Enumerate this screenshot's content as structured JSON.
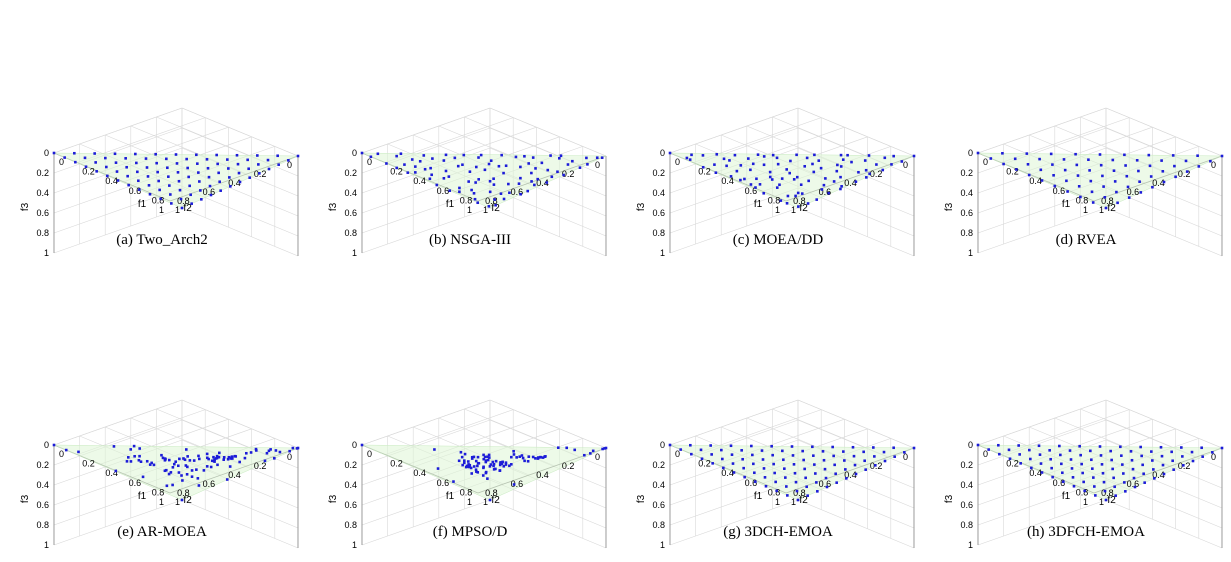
{
  "tick_labels": {
    "f3": [
      "0",
      "0.2",
      "0.4",
      "0.6",
      "0.8",
      "1"
    ],
    "f2": [
      "0",
      "0.2",
      "0.4",
      "0.6",
      "0.8",
      "1"
    ],
    "f1": [
      "0",
      "0.2",
      "0.4",
      "0.6",
      "0.8",
      "1"
    ]
  },
  "axis_labels": {
    "x": "f1",
    "y": "f2",
    "z": "f3"
  },
  "colors": {
    "points": "#1c1cd8",
    "surface": "#dff5d6",
    "grid": "#d8d8d8",
    "axis": "#888888"
  },
  "chart_data": [
    {
      "type": "scatter",
      "caption": "(a) Two_Arch2",
      "xlabel": "f1",
      "ylabel": "f2",
      "zlabel": "f3",
      "xlim": [
        0,
        1
      ],
      "ylim": [
        0,
        1
      ],
      "zlim": [
        0,
        1
      ],
      "grid": true,
      "distribution": "lattice",
      "divisions": 12
    },
    {
      "type": "scatter",
      "caption": "(b) NSGA-III",
      "xlabel": "f1",
      "ylabel": "f2",
      "zlabel": "f3",
      "xlim": [
        0,
        1
      ],
      "ylim": [
        0,
        1
      ],
      "zlim": [
        0,
        1
      ],
      "grid": true,
      "distribution": "lattice-perturbed",
      "divisions": 12
    },
    {
      "type": "scatter",
      "caption": "(c) MOEA/DD",
      "xlabel": "f1",
      "ylabel": "f2",
      "zlabel": "f3",
      "xlim": [
        0,
        1
      ],
      "ylim": [
        0,
        1
      ],
      "zlim": [
        0,
        1
      ],
      "grid": true,
      "distribution": "lattice-perturbed",
      "divisions": 12
    },
    {
      "type": "scatter",
      "caption": "(d) RVEA",
      "xlabel": "f1",
      "ylabel": "f2",
      "zlabel": "f3",
      "xlim": [
        0,
        1
      ],
      "ylim": [
        0,
        1
      ],
      "zlim": [
        0,
        1
      ],
      "grid": true,
      "distribution": "lattice",
      "divisions": 10
    },
    {
      "type": "scatter",
      "caption": "(e) AR-MOEA",
      "xlabel": "f1",
      "ylabel": "f2",
      "zlabel": "f3",
      "xlim": [
        0,
        1
      ],
      "ylim": [
        0,
        1
      ],
      "zlim": [
        0,
        1
      ],
      "grid": true,
      "distribution": "center-dense",
      "divisions": 13
    },
    {
      "type": "scatter",
      "caption": "(f) MPSO/D",
      "xlabel": "f1",
      "ylabel": "f2",
      "zlabel": "f3",
      "xlim": [
        0,
        1
      ],
      "ylim": [
        0,
        1
      ],
      "zlim": [
        0,
        1
      ],
      "grid": true,
      "distribution": "clustered",
      "divisions": 13
    },
    {
      "type": "scatter",
      "caption": "(g) 3DCH-EMOA",
      "xlabel": "f1",
      "ylabel": "f2",
      "zlabel": "f3",
      "xlim": [
        0,
        1
      ],
      "ylim": [
        0,
        1
      ],
      "zlim": [
        0,
        1
      ],
      "grid": true,
      "distribution": "lattice",
      "divisions": 12
    },
    {
      "type": "scatter",
      "caption": "(h) 3DFCH-EMOA",
      "xlabel": "f1",
      "ylabel": "f2",
      "zlabel": "f3",
      "xlim": [
        0,
        1
      ],
      "ylim": [
        0,
        1
      ],
      "zlim": [
        0,
        1
      ],
      "grid": true,
      "distribution": "lattice",
      "divisions": 12
    }
  ]
}
